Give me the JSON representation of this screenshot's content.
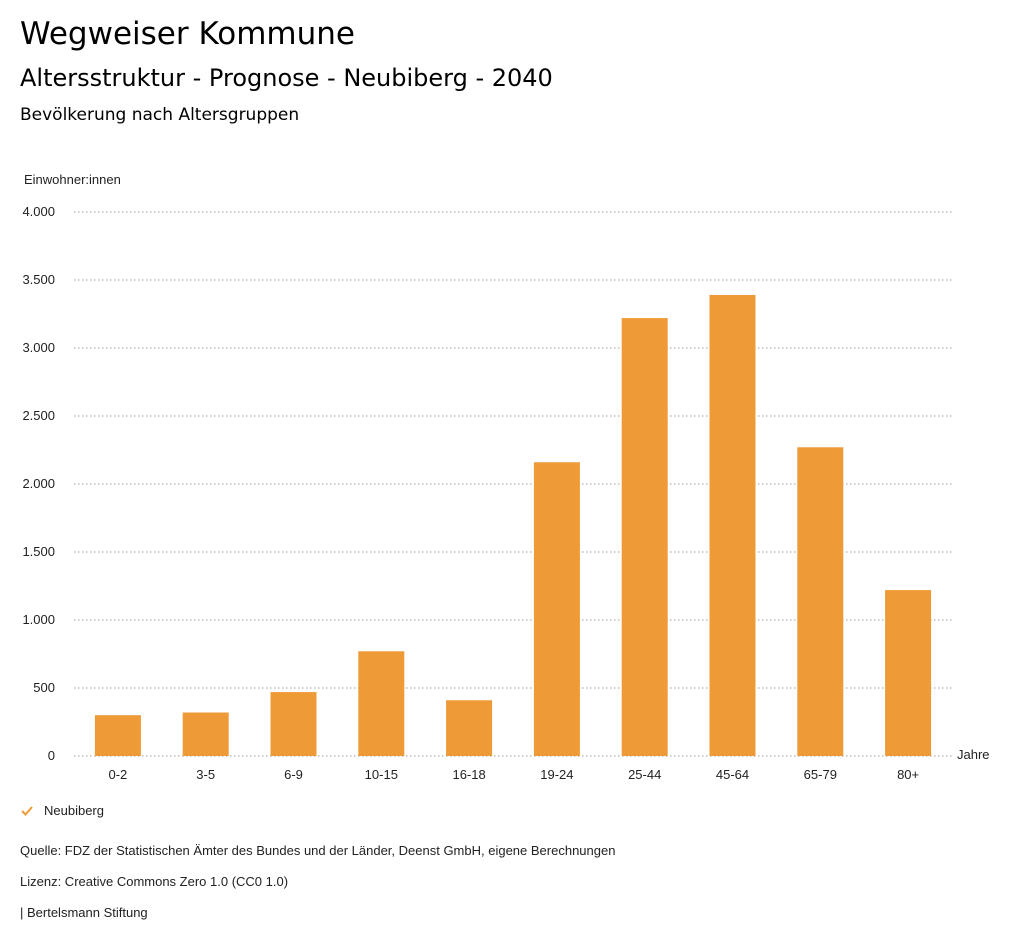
{
  "header": {
    "title": "Wegweiser Kommune",
    "subtitle": "Altersstruktur - Prognose - Neubiberg - 2040",
    "heading": "Bevölkerung nach Altersgruppen"
  },
  "chart_data": {
    "type": "bar",
    "title": "Bevölkerung nach Altersgruppen",
    "ylabel": "Einwohner:innen",
    "xlabel": "Jahre",
    "ylim": [
      0,
      4000
    ],
    "yticks": [
      0,
      500,
      1000,
      1500,
      2000,
      2500,
      3000,
      3500,
      4000
    ],
    "ytick_labels": [
      "0",
      "500",
      "1.000",
      "1.500",
      "2.000",
      "2.500",
      "3.000",
      "3.500",
      "4.000"
    ],
    "categories": [
      "0-2",
      "3-5",
      "6-9",
      "10-15",
      "16-18",
      "19-24",
      "25-44",
      "45-64",
      "65-79",
      "80+"
    ],
    "series": [
      {
        "name": "Neubiberg",
        "color": "#EE9B37",
        "values": [
          300,
          320,
          470,
          770,
          410,
          2160,
          3220,
          3390,
          2270,
          1220
        ]
      }
    ],
    "grid": "dotted horizontal"
  },
  "legend": {
    "label": "Neubiberg",
    "color": "#EE9B37"
  },
  "footer": {
    "source": "Quelle: FDZ der Statistischen Ämter des Bundes und der Länder, Deenst GmbH, eigene Berechnungen",
    "license": "Lizenz: Creative Commons Zero 1.0 (CC0 1.0)",
    "publisher": "| Bertelsmann Stiftung"
  }
}
